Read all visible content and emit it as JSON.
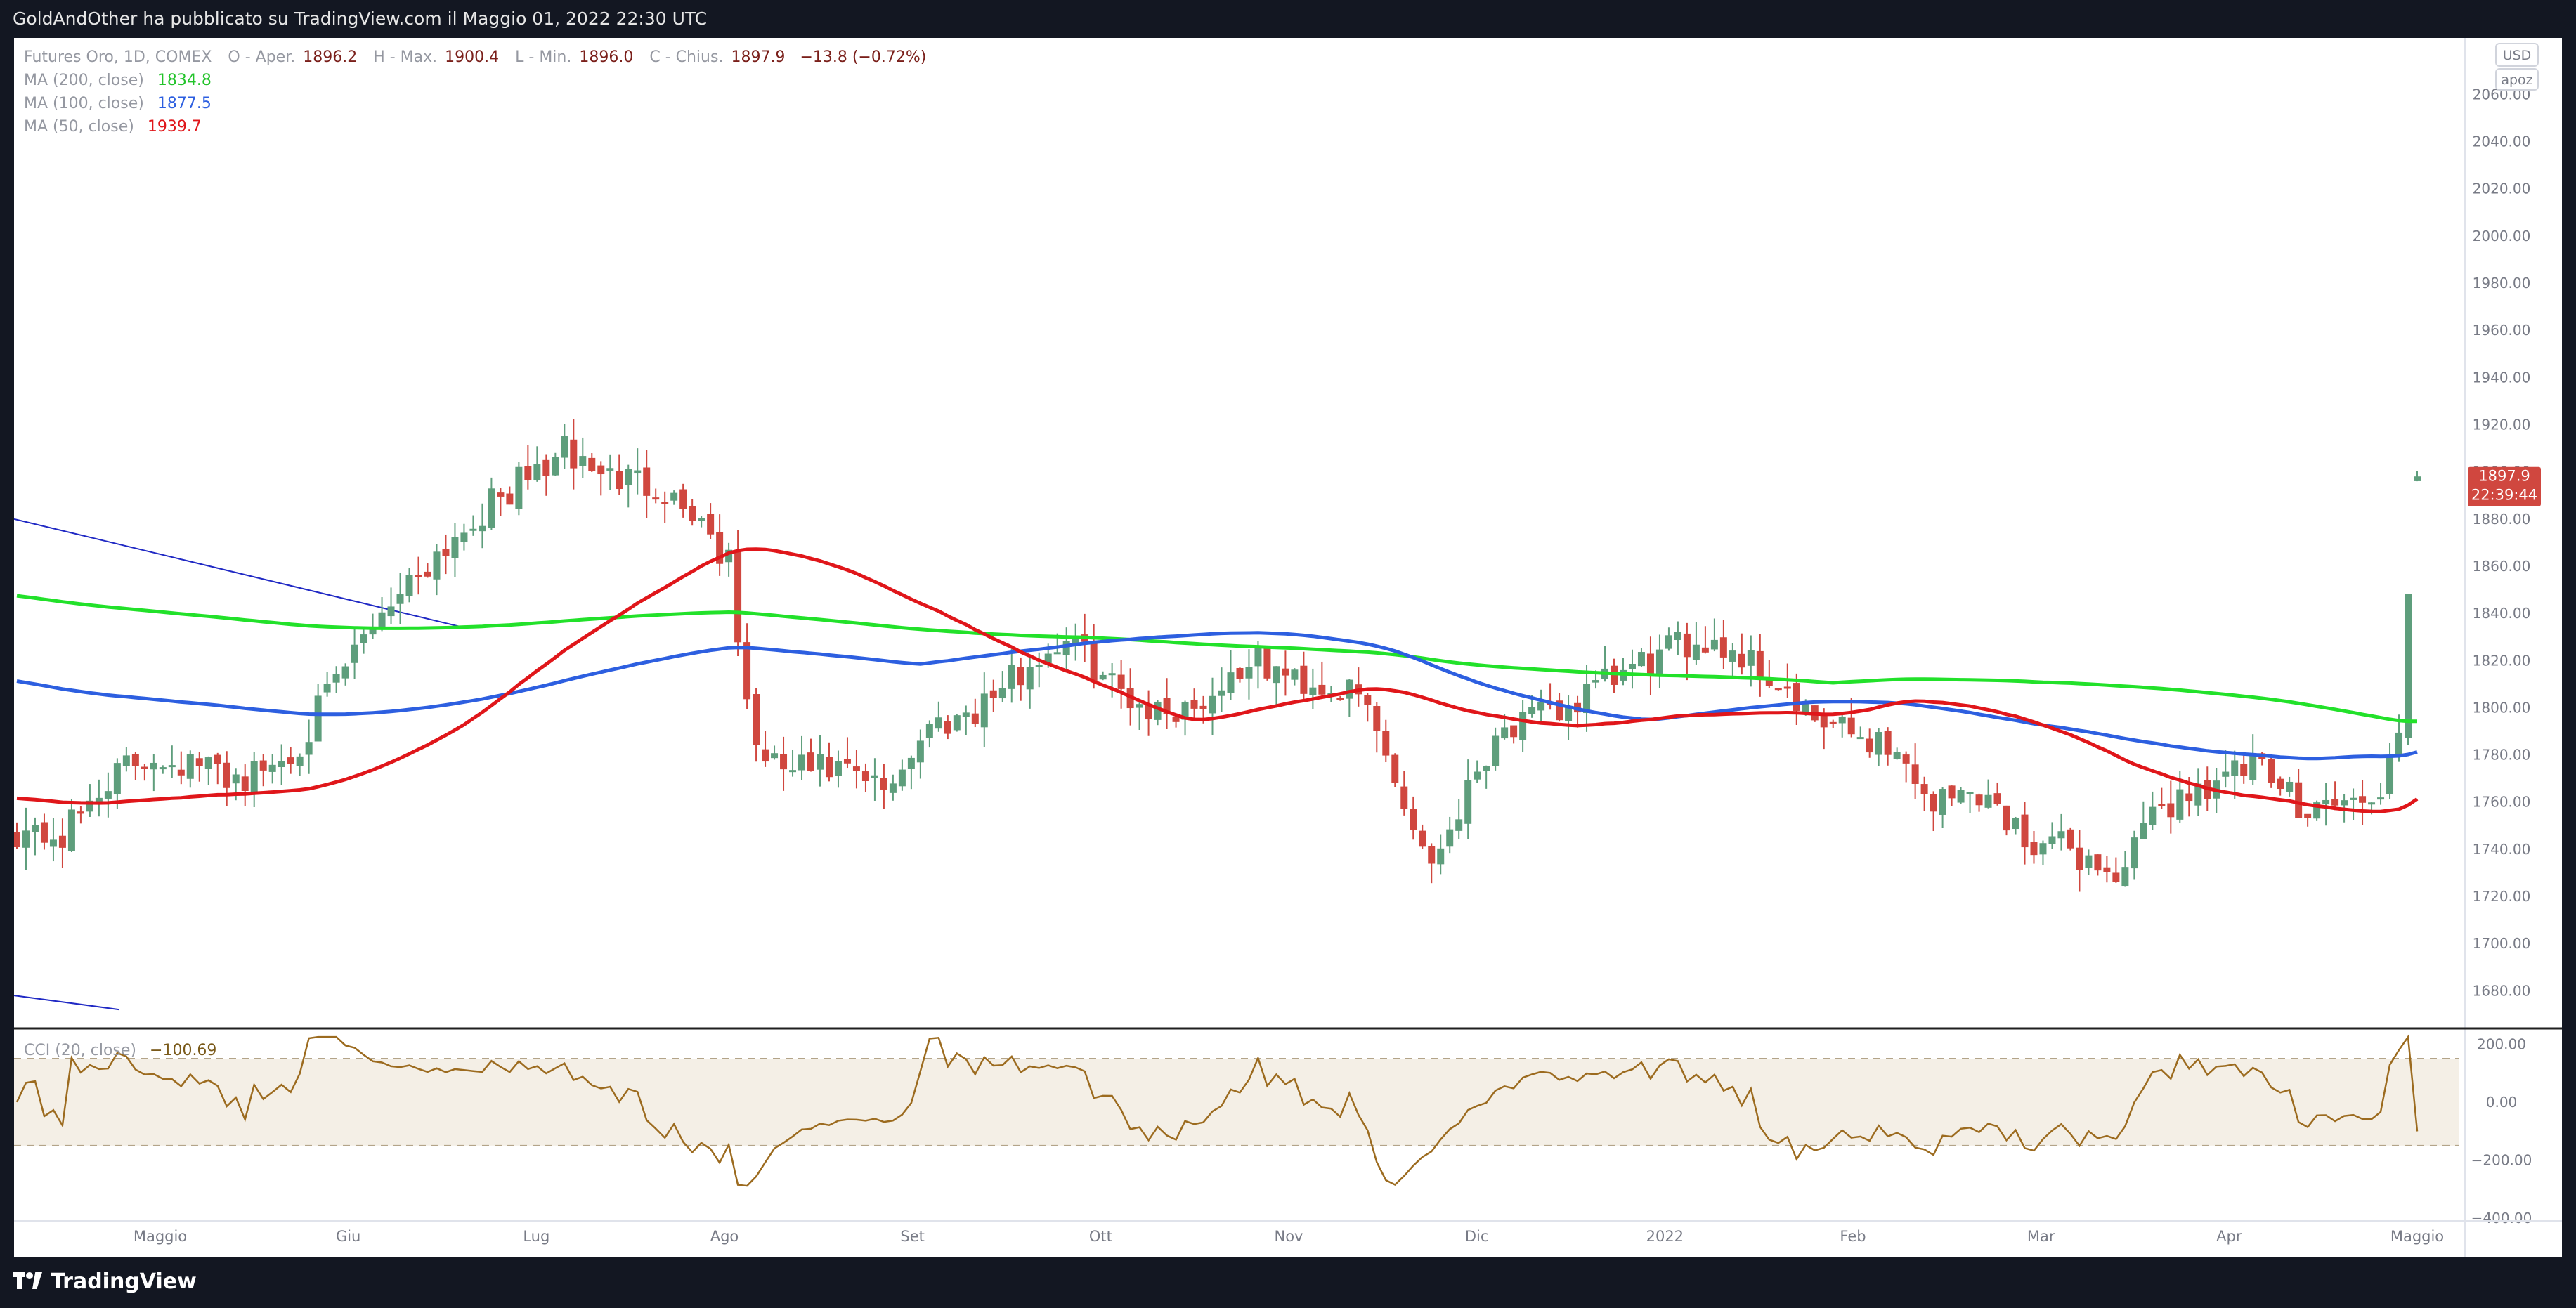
{
  "header": {
    "publish_note": "GoldAndOther ha pubblicato su TradingView.com il Maggio 01, 2022 22:30 UTC"
  },
  "footer": {
    "brand": "TradingView"
  },
  "legend": {
    "symbol": "Futures Oro, 1D, COMEX",
    "o_label": "O - Aper.",
    "o_value": "1896.2",
    "h_label": "H - Max.",
    "h_value": "1900.4",
    "l_label": "L - Min.",
    "l_value": "1896.0",
    "c_label": "C - Chius.",
    "c_value": "1897.9",
    "change": "−13.8 (−0.72%)",
    "ma200_label": "MA (200, close)",
    "ma200_value": "1834.8",
    "ma100_label": "MA (100, close)",
    "ma100_value": "1877.5",
    "ma50_label": "MA (50, close)",
    "ma50_value": "1939.7",
    "cci_label": "CCI (20, close)",
    "cci_value": "−100.69"
  },
  "scale_controls": {
    "currency": "USD",
    "mode": "apoz"
  },
  "price_tag": {
    "value": "1897.9",
    "countdown": "22:39:44"
  },
  "colors": {
    "up": "#5e9e7c",
    "down": "#d0473f",
    "ma200": "#22e12a",
    "ma100": "#2d5fe0",
    "ma50": "#e0161a",
    "cci": "#9c6b1f",
    "band": "#f4efe6",
    "trendline": "#2029c4"
  },
  "chart_data": [
    {
      "type": "candlestick",
      "title": "Futures Oro, 1D, COMEX",
      "x_ticks": [
        "Maggio",
        "Giu",
        "Lug",
        "Ago",
        "Set",
        "Ott",
        "Nov",
        "Dic",
        "2022",
        "Feb",
        "Mar",
        "Apr",
        "Maggio"
      ],
      "y_ticks": [
        1680,
        1700,
        1720,
        1740,
        1760,
        1780,
        1800,
        1820,
        1840,
        1860,
        1880,
        1900,
        1920,
        1940,
        1960,
        1980,
        2000,
        2020,
        2040,
        2060
      ],
      "ylim": [
        1667,
        2078
      ],
      "grid": false,
      "bars": 264,
      "close_anchors": [
        [
          0,
          1748
        ],
        [
          5,
          1745
        ],
        [
          10,
          1770
        ],
        [
          15,
          1780
        ],
        [
          20,
          1775
        ],
        [
          25,
          1770
        ],
        [
          30,
          1780
        ],
        [
          35,
          1810
        ],
        [
          40,
          1842
        ],
        [
          45,
          1862
        ],
        [
          50,
          1880
        ],
        [
          55,
          1895
        ],
        [
          60,
          1908
        ],
        [
          65,
          1898
        ],
        [
          70,
          1895
        ],
        [
          75,
          1880
        ],
        [
          78,
          1860
        ],
        [
          80,
          1800
        ],
        [
          82,
          1775
        ],
        [
          90,
          1773
        ],
        [
          95,
          1765
        ],
        [
          100,
          1792
        ],
        [
          105,
          1800
        ],
        [
          110,
          1815
        ],
        [
          115,
          1830
        ],
        [
          120,
          1810
        ],
        [
          125,
          1798
        ],
        [
          130,
          1803
        ],
        [
          135,
          1820
        ],
        [
          140,
          1812
        ],
        [
          145,
          1808
        ],
        [
          148,
          1800
        ],
        [
          151,
          1770
        ],
        [
          153,
          1750
        ],
        [
          155,
          1735
        ],
        [
          158,
          1758
        ],
        [
          162,
          1790
        ],
        [
          165,
          1793
        ],
        [
          170,
          1800
        ],
        [
          175,
          1812
        ],
        [
          180,
          1822
        ],
        [
          185,
          1830
        ],
        [
          190,
          1820
        ],
        [
          193,
          1810
        ],
        [
          196,
          1795
        ],
        [
          200,
          1790
        ],
        [
          205,
          1785
        ],
        [
          210,
          1760
        ],
        [
          215,
          1765
        ],
        [
          220,
          1745
        ],
        [
          225,
          1740
        ],
        [
          230,
          1728
        ],
        [
          235,
          1758
        ],
        [
          240,
          1768
        ],
        [
          245,
          1775
        ],
        [
          250,
          1760
        ],
        [
          255,
          1760
        ],
        [
          258,
          1758
        ],
        [
          261,
          1785
        ],
        [
          263,
          1897.9
        ]
      ],
      "last_bar": {
        "open": 1896.2,
        "high": 1900.4,
        "low": 1896.0,
        "close": 1897.9
      },
      "series": [
        {
          "name": "MA (200, close)",
          "last": 1834.8
        },
        {
          "name": "MA (100, close)",
          "last": 1877.5
        },
        {
          "name": "MA (50, close)",
          "last": 1939.7
        }
      ]
    },
    {
      "type": "line",
      "title": "CCI (20, close)",
      "y_ticks": [
        200,
        0,
        -200,
        -400
      ],
      "ylim": [
        -400,
        230
      ],
      "band": [
        -150,
        150
      ],
      "last": -100.69
    }
  ]
}
